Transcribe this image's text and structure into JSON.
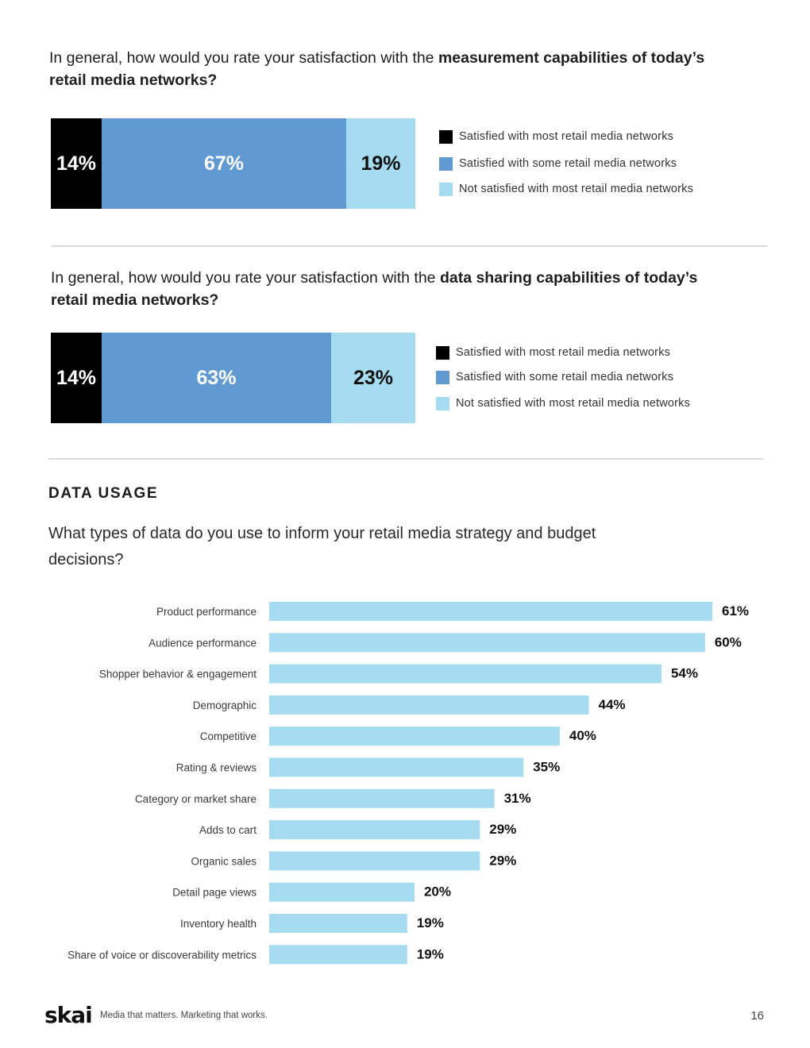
{
  "q1": {
    "prefix": "In general, how would you rate your satisfaction with the ",
    "bold": "measurement capabilities of today’s retail media networks?"
  },
  "q2": {
    "prefix": "In general, how would you rate your satisfaction with the ",
    "bold": "data sharing capabilities of today’s retail media networks?"
  },
  "legend": {
    "most": "Satisfied with most retail media networks",
    "some": "Satisfied with some retail media networks",
    "not": "Not satisfied with most retail media networks"
  },
  "colors": {
    "most": "#000000",
    "some": "#6199d1",
    "not": "#a6dcef",
    "hbar": "#a6dcef"
  },
  "section_title": "DATA USAGE",
  "q3": "What types of data do you use to inform your retail media strategy and budget decisions?",
  "chart_data": [
    {
      "type": "bar",
      "orientation": "horizontal-stacked",
      "title": "Satisfaction with measurement capabilities",
      "categories": [
        "Satisfied with most retail media networks",
        "Satisfied with some retail media networks",
        "Not satisfied with most retail media networks"
      ],
      "values": [
        14,
        67,
        19
      ],
      "labels": [
        "14%",
        "67%",
        "19%"
      ]
    },
    {
      "type": "bar",
      "orientation": "horizontal-stacked",
      "title": "Satisfaction with data sharing capabilities",
      "categories": [
        "Satisfied with most retail media networks",
        "Satisfied with some retail media networks",
        "Not satisfied with most retail media networks"
      ],
      "values": [
        14,
        63,
        23
      ],
      "labels": [
        "14%",
        "63%",
        "23%"
      ]
    },
    {
      "type": "bar",
      "orientation": "horizontal",
      "title": "What types of data do you use to inform your retail media strategy and budget decisions?",
      "categories": [
        "Product performance",
        "Audience performance",
        "Shopper behavior & engagement",
        "Demographic",
        "Competitive",
        "Rating & reviews",
        "Category or market share",
        "Adds to cart",
        "Organic sales",
        "Detail page views",
        "Inventory health",
        "Share of voice or discoverability metrics"
      ],
      "values": [
        61,
        60,
        54,
        44,
        40,
        35,
        31,
        29,
        29,
        20,
        19,
        19
      ],
      "labels": [
        "61%",
        "60%",
        "54%",
        "44%",
        "40%",
        "35%",
        "31%",
        "29%",
        "29%",
        "20%",
        "19%",
        "19%"
      ],
      "xlim": [
        0,
        61
      ]
    }
  ],
  "footer": {
    "logo": "skai",
    "tagline": "Media that matters. Marketing that works.",
    "page": "16"
  }
}
